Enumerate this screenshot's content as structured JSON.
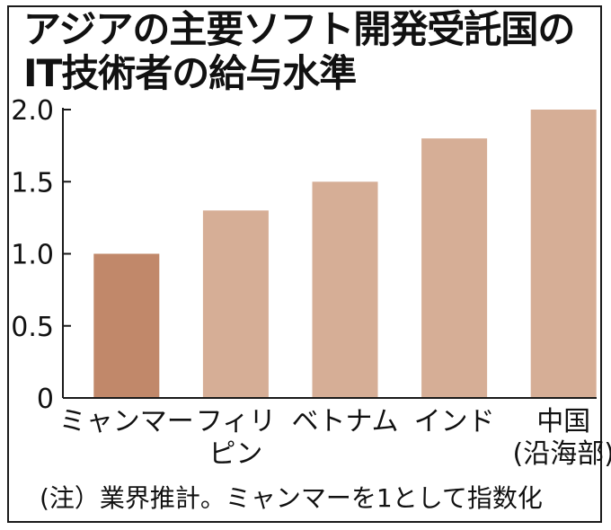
{
  "title_lines": [
    "アジアの主要ソフト開発受託国の",
    "IT技術者の給与水準"
  ],
  "note": "(注）業界推計。ミャンマーを1として指数化",
  "chart_data": {
    "type": "bar",
    "title": "アジアの主要ソフト開発受託国のIT技術者の給与水準",
    "categories": [
      [
        "ミャンマー"
      ],
      [
        "フィリ",
        "ピン"
      ],
      [
        "ベトナム"
      ],
      [
        "インド"
      ],
      [
        "中国",
        "(沿海部)"
      ]
    ],
    "values": [
      1.0,
      1.3,
      1.5,
      1.8,
      2.0
    ],
    "yticks": [
      "0",
      "0.5",
      "1.0",
      "1.5",
      "2.0"
    ],
    "ylim": [
      0,
      2.0
    ],
    "grid": false,
    "bar_colors": [
      "#c1886a",
      "#d6ae96",
      "#d6ae96",
      "#d6ae96",
      "#d6ae96"
    ],
    "axis_color": "#1a1a1a"
  }
}
